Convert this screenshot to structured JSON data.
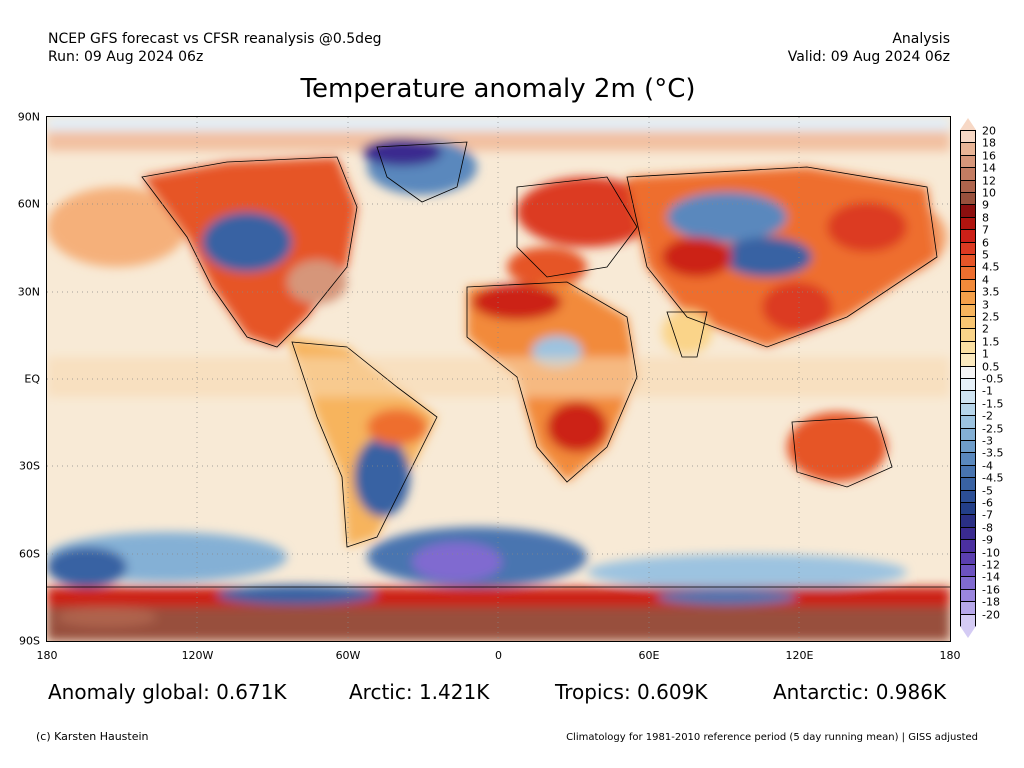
{
  "header": {
    "source_line": "NCEP GFS forecast vs CFSR reanalysis @0.5deg",
    "run_line": "Run: 09 Aug 2024 06z",
    "type_line": "Analysis",
    "valid_line": "Valid: 09 Aug 2024 06z"
  },
  "title": "Temperature anomaly 2m (°C)",
  "map": {
    "lat_labels": [
      "90N",
      "60N",
      "30N",
      "EQ",
      "30S",
      "60S",
      "90S"
    ],
    "lon_labels": [
      "180",
      "120W",
      "60W",
      "0",
      "60E",
      "120E",
      "180"
    ]
  },
  "colorbar": {
    "labels": [
      "20",
      "18",
      "16",
      "14",
      "12",
      "10",
      "9",
      "8",
      "7",
      "6",
      "5",
      "4.5",
      "4",
      "3.5",
      "3",
      "2.5",
      "2",
      "1.5",
      "1",
      "0.5",
      "-0.5",
      "-1",
      "-1.5",
      "-2",
      "-2.5",
      "-3",
      "-3.5",
      "-4",
      "-4.5",
      "-5",
      "-6",
      "-7",
      "-8",
      "-9",
      "-10",
      "-12",
      "-14",
      "-16",
      "-18",
      "-20"
    ],
    "colors": [
      "#f7d8c5",
      "#e8b496",
      "#d6967a",
      "#c47c62",
      "#ae644d",
      "#98503c",
      "#8c0f0f",
      "#b0140f",
      "#cc2018",
      "#dc3a22",
      "#e65528",
      "#ee6e2f",
      "#f28a3a",
      "#f5a04a",
      "#f7b45d",
      "#f9c672",
      "#fad489",
      "#fbe0a2",
      "#fceabf",
      "#f5f5f5",
      "#e6f1f9",
      "#cfe4f2",
      "#b6d5ea",
      "#9cc3e0",
      "#84b0d5",
      "#6e9dca",
      "#5a88bd",
      "#4874b0",
      "#3962a3",
      "#2c4f96",
      "#233f88",
      "#2a2f84",
      "#3a2a8f",
      "#4b30a0",
      "#5b3fb0",
      "#6c52c0",
      "#806ad0",
      "#9a86de",
      "#b7a8ea",
      "#d4cbf4"
    ]
  },
  "stats": {
    "global": "Anomaly global: 0.671K",
    "arctic": "Arctic: 1.421K",
    "tropics": "Tropics: 0.609K",
    "antarctic": "Antarctic: 0.986K"
  },
  "footer": {
    "credit": "(c) Karsten Haustein",
    "note": "Climatology for 1981-2010 reference period (5 day running mean) | GISS adjusted"
  }
}
